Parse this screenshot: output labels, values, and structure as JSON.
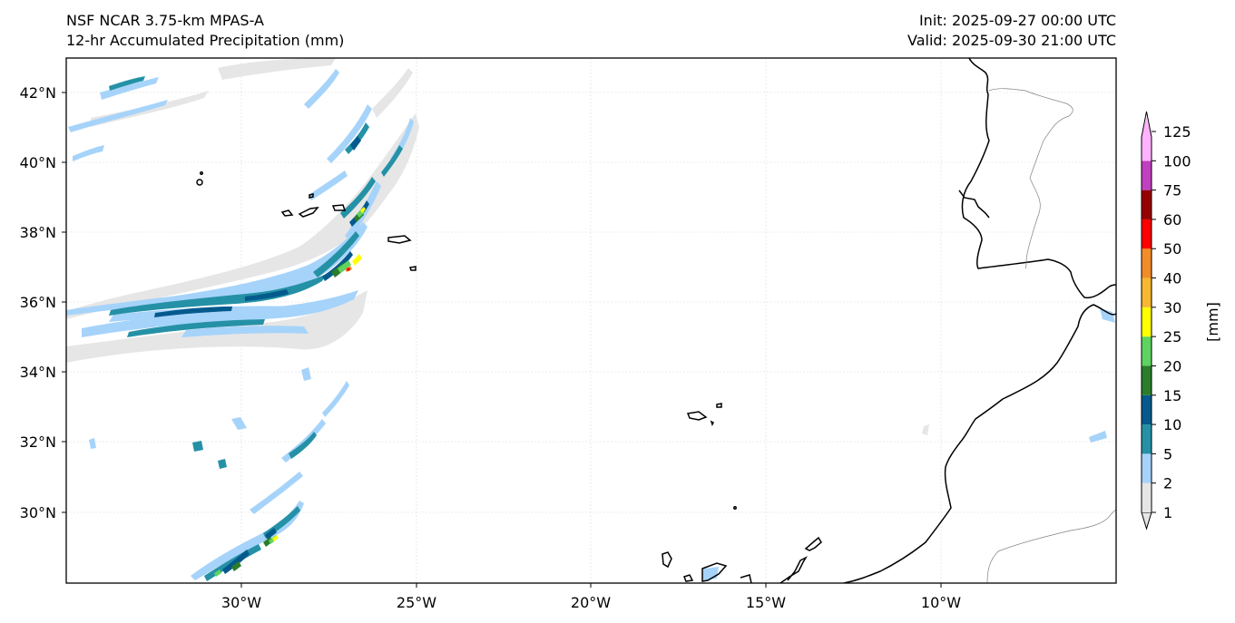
{
  "header": {
    "model": "NSF NCAR 3.75-km MPAS-A",
    "field": "12-hr Accumulated Precipitation (mm)",
    "init": "Init: 2025-09-27 00:00 UTC",
    "valid": "Valid: 2025-09-30 21:00 UTC"
  },
  "axes": {
    "lon_ticks": [
      "30°W",
      "25°W",
      "20°W",
      "15°W",
      "10°W"
    ],
    "lat_ticks": [
      "42°N",
      "40°N",
      "38°N",
      "36°N",
      "34°N",
      "32°N",
      "30°N"
    ]
  },
  "colorbar": {
    "unit_label": "[mm]",
    "levels": [
      "1",
      "2",
      "5",
      "10",
      "15",
      "20",
      "25",
      "30",
      "40",
      "50",
      "60",
      "75",
      "100",
      "125"
    ],
    "colors": [
      "#e6e6e6",
      "#a6d3fa",
      "#2591a6",
      "#045a8d",
      "#2b7d2b",
      "#5fd35f",
      "#ffff00",
      "#f7b731",
      "#f28c28",
      "#ff0000",
      "#990000",
      "#c040c0",
      "#ffb3ff"
    ]
  }
}
